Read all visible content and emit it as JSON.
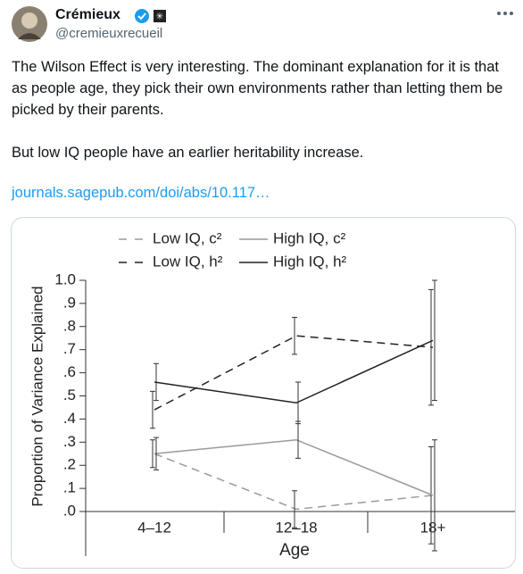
{
  "tweet": {
    "name": "Crémieux",
    "handle": "@cremieuxrecueil",
    "paragraphs": [
      "The Wilson Effect is very interesting. The dominant explanation for it is that as people age, they pick their own environments rather than letting them be picked by their parents.",
      "But low IQ people have an earlier heritability increase."
    ],
    "link": "journals.sagepub.com/doi/abs/10.117…"
  },
  "chart_data": {
    "type": "line",
    "x_label": "Age",
    "y_label": "Proportion of Variance Explained",
    "categories": [
      "4–12",
      "12–18",
      "18+"
    ],
    "ylim": [
      0,
      1
    ],
    "yticks": [
      {
        "value": 0,
        "label": ".0"
      },
      {
        "value": 0.1,
        "label": ".1"
      },
      {
        "value": 0.2,
        "label": ".2"
      },
      {
        "value": 0.3,
        "label": ".3"
      },
      {
        "value": 0.4,
        "label": ".4"
      },
      {
        "value": 0.5,
        "label": ".5"
      },
      {
        "value": 0.6,
        "label": ".6"
      },
      {
        "value": 0.7,
        "label": ".7"
      },
      {
        "value": 0.8,
        "label": ".8"
      },
      {
        "value": 0.9,
        "label": ".9"
      },
      {
        "value": 1,
        "label": "1.0"
      }
    ],
    "series": [
      {
        "name": "Low IQ, c²",
        "color": "#9a9a9a",
        "dashed": true,
        "values": [
          0.25,
          0.01,
          0.07
        ],
        "errors": [
          0.06,
          0.08,
          0.21
        ]
      },
      {
        "name": "High IQ, c²",
        "color": "#9a9a9a",
        "dashed": false,
        "values": [
          0.25,
          0.31,
          0.07
        ],
        "errors": [
          0.07,
          0.08,
          0.24
        ]
      },
      {
        "name": "Low IQ, h²",
        "color": "#222222",
        "dashed": true,
        "values": [
          0.44,
          0.76,
          0.71
        ],
        "errors": [
          0.08,
          0.08,
          0.25
        ]
      },
      {
        "name": "High IQ, h²",
        "color": "#222222",
        "dashed": false,
        "values": [
          0.56,
          0.47,
          0.74
        ],
        "errors": [
          0.08,
          0.09,
          0.26
        ]
      }
    ]
  }
}
